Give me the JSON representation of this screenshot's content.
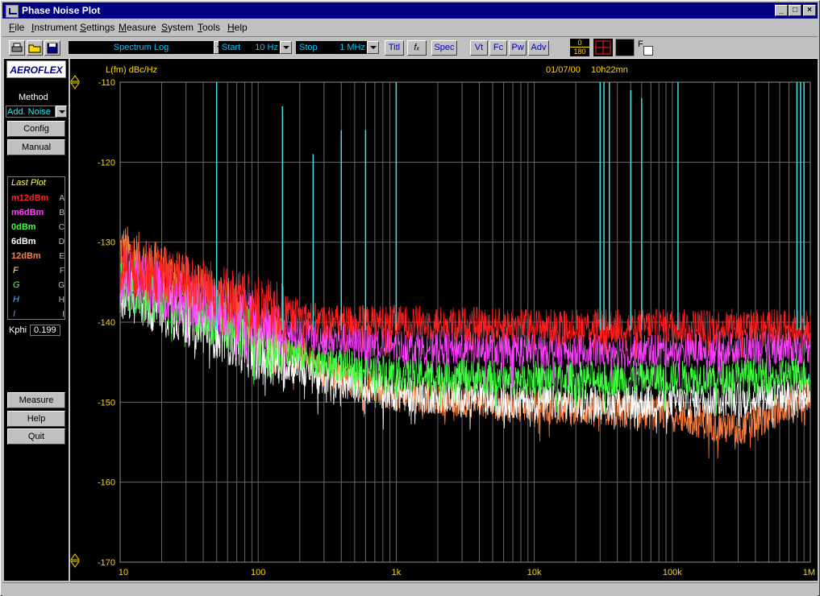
{
  "window": {
    "title": "Phase Noise Plot"
  },
  "menu": [
    "File",
    "Instrument",
    "Settings",
    "Measure",
    "System",
    "Tools",
    "Help"
  ],
  "menu_underline": [
    "F",
    "I",
    "S",
    "M",
    "S",
    "T",
    "H"
  ],
  "toolbar": {
    "mode_value": "Spectrum Log",
    "start_label": "Start",
    "start_value": "10 Hz",
    "stop_label": "Stop",
    "stop_value": "1 MHz",
    "titl_label": "Titl",
    "fx_label": "fₓ",
    "spec_label": "Spec",
    "vt_label": "Vt",
    "fc_label": "Fc",
    "pw_label": "Pw",
    "adv_label": "Adv",
    "phase_top": "0",
    "phase_bottom": "180",
    "f_label": "F"
  },
  "sidebar": {
    "logo": "AEROFLEX",
    "method_label": "Method",
    "method_value": "Add. Noise",
    "config_button": "Config",
    "manual_button": "Manual",
    "legend_title": "Last Plot",
    "legend": [
      {
        "name": "m12dBm",
        "letter": "A",
        "color": "#ff2020",
        "bold": true
      },
      {
        "name": "m6dBm",
        "letter": "B",
        "color": "#ff40ff",
        "bold": true
      },
      {
        "name": "0dBm",
        "letter": "C",
        "color": "#40ff40",
        "bold": true
      },
      {
        "name": "6dBm",
        "letter": "D",
        "color": "#ffffff",
        "bold": true
      },
      {
        "name": "12dBm",
        "letter": "E",
        "color": "#ff8040",
        "bold": true
      },
      {
        "name": "F",
        "letter": "F",
        "color": "#ffff60",
        "bold": false
      },
      {
        "name": "G",
        "letter": "G",
        "color": "#60ff60",
        "bold": false
      },
      {
        "name": "H",
        "letter": "H",
        "color": "#40c0ff",
        "bold": false
      },
      {
        "name": "I",
        "letter": "I",
        "color": "#8080ff",
        "bold": false
      }
    ],
    "kphi_label": "Kphi",
    "kphi_value": "0.199",
    "measure_button": "Measure",
    "help_button": "Help",
    "quit_button": "Quit"
  },
  "plot": {
    "ylabel": "L(fm) dBc/Hz",
    "date": "01/07/00",
    "time": "10h22mn"
  },
  "chart_data": {
    "type": "line",
    "xscale": "log",
    "xlim": [
      10,
      1000000
    ],
    "ylim": [
      -170,
      -110
    ],
    "x_tick_labels": [
      "10",
      "100",
      "1k",
      "10k",
      "100k",
      "1M"
    ],
    "y_tick_labels": [
      "-110",
      "-120",
      "-130",
      "-140",
      "-150",
      "-160",
      "-170"
    ],
    "y_ticks": [
      -110,
      -120,
      -130,
      -140,
      -150,
      -160,
      -170
    ],
    "grid": true,
    "series": [
      {
        "name": "m12dBm",
        "color": "#ff2020",
        "x": [
          10,
          20,
          50,
          100,
          300,
          1000,
          10000,
          100000,
          1000000
        ],
        "y": [
          -133,
          -134,
          -136,
          -138,
          -140,
          -140,
          -140.5,
          -140.5,
          -140.5
        ]
      },
      {
        "name": "m6dBm",
        "color": "#ff40ff",
        "x": [
          10,
          20,
          50,
          100,
          300,
          1000,
          10000,
          100000,
          1000000
        ],
        "y": [
          -134,
          -136,
          -138,
          -140,
          -142,
          -143,
          -143.5,
          -143.5,
          -143
        ]
      },
      {
        "name": "0dBm",
        "color": "#40ff40",
        "x": [
          10,
          20,
          50,
          100,
          300,
          1000,
          10000,
          100000,
          1000000
        ],
        "y": [
          -135,
          -137,
          -139.5,
          -142,
          -145,
          -146.5,
          -147,
          -147,
          -146.5
        ]
      },
      {
        "name": "6dBm",
        "color": "#ffffff",
        "x": [
          10,
          20,
          50,
          100,
          300,
          1000,
          10000,
          100000,
          1000000
        ],
        "y": [
          -136,
          -138,
          -141,
          -144,
          -147,
          -149,
          -150,
          -150,
          -149
        ]
      },
      {
        "name": "12dBm",
        "color": "#ff8040",
        "x": [
          10,
          20,
          50,
          100,
          300,
          1000,
          10000,
          100000,
          300000,
          1000000
        ],
        "y": [
          -131,
          -134,
          -137,
          -141,
          -146,
          -149,
          -150.5,
          -151.5,
          -153.5,
          -149
        ]
      }
    ],
    "spurs": {
      "color": "#40e0e0",
      "x": [
        50,
        150,
        250,
        400,
        600,
        1000,
        30000,
        32000,
        35000,
        50000,
        60000,
        110000,
        800000,
        850000,
        900000
      ],
      "top": [
        -110,
        -113,
        -119,
        -116,
        -116,
        -110,
        -110,
        -110,
        -110,
        -111,
        -112,
        -110,
        -110,
        -110,
        -110
      ]
    }
  }
}
